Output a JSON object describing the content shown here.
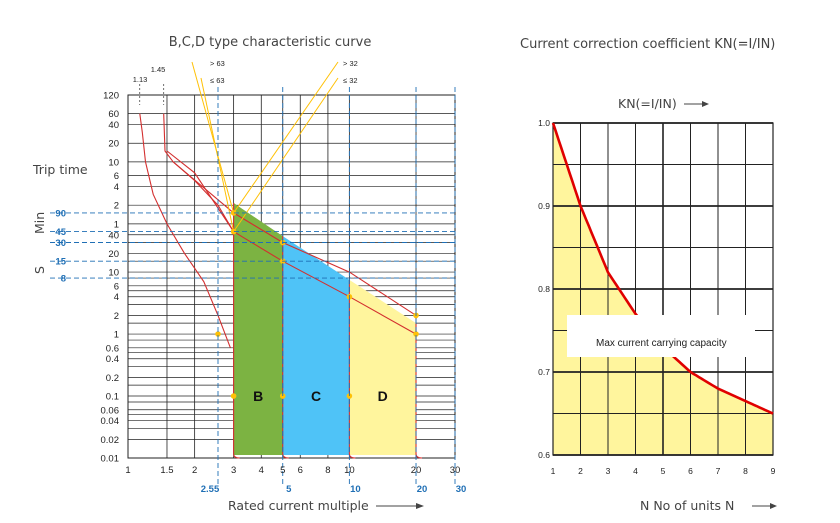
{
  "chart_data": [
    {
      "type": "line",
      "title": "B,C,D type characteristic curve",
      "xlabel": "Rated current multiple",
      "ylabel": "Trip time",
      "x_scale": "log",
      "y_scale": "log",
      "x_ticks": [
        "1",
        "1.5",
        "2",
        "3",
        "4",
        "5",
        "6",
        "8",
        "10",
        "20",
        "30"
      ],
      "x_ticks_blue": [
        "2.55",
        "5",
        "10",
        "20",
        "30"
      ],
      "min_ticks": [
        "120",
        "60",
        "40",
        "20",
        "10",
        "6",
        "4",
        "2",
        "1"
      ],
      "sec_ticks": [
        "40",
        "20",
        "10",
        "6",
        "4",
        "2",
        "1",
        "0.6",
        "0.4",
        "0.2",
        "0.1",
        "0.06",
        "0.04",
        "0.02",
        "0.01"
      ],
      "unit_min": "Min",
      "unit_sec": "S",
      "blue_marks": [
        "90",
        "45",
        "30",
        "15",
        "8"
      ],
      "annotations": [
        "1.13",
        "1.45",
        "> 63",
        "≤ 63",
        "> 32",
        "≤ 32"
      ],
      "zones": [
        {
          "name": "B",
          "from": 3,
          "to": 5,
          "color": "#7cb342"
        },
        {
          "name": "C",
          "from": 5,
          "to": 10,
          "color": "#4fc3f7"
        },
        {
          "name": "D",
          "from": 10,
          "to": 20,
          "color": "#fff59d"
        }
      ],
      "grid": true
    },
    {
      "type": "line",
      "title": "Current correction coefficient KN(=I/IN)",
      "axis_label": "KN(=I/IN)",
      "xlabel": "N No of units N",
      "x": [
        1,
        2,
        3,
        4,
        5,
        6,
        7,
        8,
        9
      ],
      "y": [
        1.0,
        0.9,
        0.82,
        0.77,
        0.73,
        0.7,
        0.68,
        0.665,
        0.65
      ],
      "x_ticks": [
        "1",
        "2",
        "3",
        "4",
        "5",
        "6",
        "7",
        "8",
        "9"
      ],
      "y_ticks": [
        "1.0",
        "0.9",
        "0.8",
        "0.7",
        "0.6"
      ],
      "xlim": [
        1,
        9
      ],
      "ylim": [
        0.6,
        1.0
      ],
      "fill_color": "#fff59d",
      "line_color": "#e00000",
      "annotation": "Max current carrying capacity",
      "grid": true
    }
  ]
}
